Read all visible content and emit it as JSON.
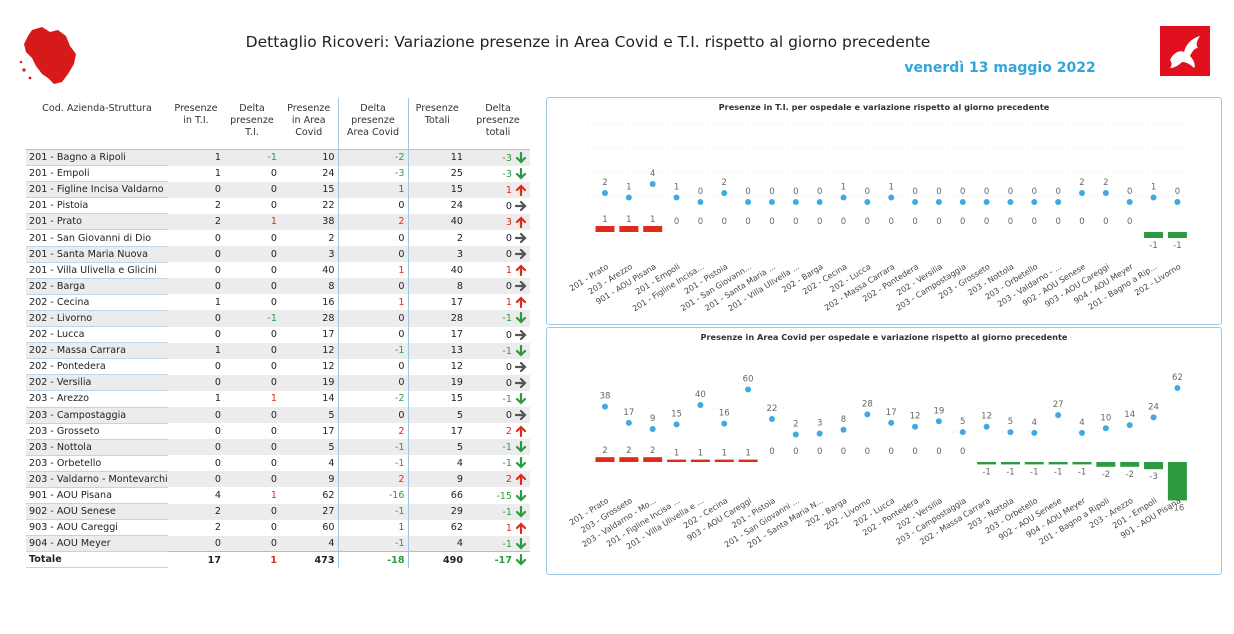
{
  "header": {
    "title": "Dettaglio Ricoveri: Variazione presenze in Area Covid e T.I. rispetto al giorno precedente",
    "date": "venerdì 13 maggio 2022",
    "colors": {
      "title": "#222222",
      "date": "#2fa6dd",
      "logo_right": "#e1101f",
      "logo_left": "#d61a1a"
    }
  },
  "table": {
    "columns": [
      "Cod. Azienda-Struttura",
      "Presenze in T.I.",
      "Delta presenze T.I.",
      "Presenze in Area Covid",
      "Delta presenze Area Covid",
      "Presenze Totali",
      "Delta presenze totali"
    ],
    "rows": [
      [
        "201 - Bagno a Ripoli",
        "1",
        "-1",
        "10",
        "-2",
        "11",
        "-3"
      ],
      [
        "201 - Empoli",
        "1",
        "0",
        "24",
        "-3",
        "25",
        "-3"
      ],
      [
        "201 - Figline Incisa Valdarno",
        "0",
        "0",
        "15",
        "1",
        "15",
        "1"
      ],
      [
        "201 - Pistoia",
        "2",
        "0",
        "22",
        "0",
        "24",
        "0"
      ],
      [
        "201 - Prato",
        "2",
        "1",
        "38",
        "2",
        "40",
        "3"
      ],
      [
        "201 - San Giovanni di Dio",
        "0",
        "0",
        "2",
        "0",
        "2",
        "0"
      ],
      [
        "201 - Santa Maria Nuova",
        "0",
        "0",
        "3",
        "0",
        "3",
        "0"
      ],
      [
        "201 - Villa Ulivella e Glicini",
        "0",
        "0",
        "40",
        "1",
        "40",
        "1"
      ],
      [
        "202 - Barga",
        "0",
        "0",
        "8",
        "0",
        "8",
        "0"
      ],
      [
        "202 - Cecina",
        "1",
        "0",
        "16",
        "1",
        "17",
        "1"
      ],
      [
        "202 - Livorno",
        "0",
        "-1",
        "28",
        "0",
        "28",
        "-1"
      ],
      [
        "202 - Lucca",
        "0",
        "0",
        "17",
        "0",
        "17",
        "0"
      ],
      [
        "202 - Massa Carrara",
        "1",
        "0",
        "12",
        "-1",
        "13",
        "-1"
      ],
      [
        "202 - Pontedera",
        "0",
        "0",
        "12",
        "0",
        "12",
        "0"
      ],
      [
        "202 - Versilia",
        "0",
        "0",
        "19",
        "0",
        "19",
        "0"
      ],
      [
        "203 - Arezzo",
        "1",
        "1",
        "14",
        "-2",
        "15",
        "-1"
      ],
      [
        "203 - Campostaggia",
        "0",
        "0",
        "5",
        "0",
        "5",
        "0"
      ],
      [
        "203 - Grosseto",
        "0",
        "0",
        "17",
        "2",
        "17",
        "2"
      ],
      [
        "203 - Nottola",
        "0",
        "0",
        "5",
        "-1",
        "5",
        "-1"
      ],
      [
        "203 - Orbetello",
        "0",
        "0",
        "4",
        "-1",
        "4",
        "-1"
      ],
      [
        "203 - Valdarno - Montevarchi",
        "0",
        "0",
        "9",
        "2",
        "9",
        "2"
      ],
      [
        "901 - AOU Pisana",
        "4",
        "1",
        "62",
        "-16",
        "66",
        "-15"
      ],
      [
        "902 - AOU Senese",
        "2",
        "0",
        "27",
        "-1",
        "29",
        "-1"
      ],
      [
        "903 - AOU Careggi",
        "2",
        "0",
        "60",
        "1",
        "62",
        "1"
      ],
      [
        "904 - AOU Meyer",
        "0",
        "0",
        "4",
        "-1",
        "4",
        "-1"
      ]
    ],
    "total": [
      "Totale",
      "17",
      "1",
      "473",
      "-18",
      "490",
      "-17"
    ],
    "colors": {
      "negative": "#2e9a3f",
      "positive": "#e02a1a",
      "arrow_neutral": "#555555"
    }
  },
  "chart_data": [
    {
      "type": "line",
      "title": "Presenze in T.I. per ospedale e variazione rispetto al giorno precedente",
      "categories": [
        "201 - Prato",
        "203 - Arezzo",
        "901 - AOU Pisana",
        "201 - Empoli",
        "201 - Figline Incisa...",
        "201 - Pistoia",
        "201 - San Giovann...",
        "201 - Santa Maria ...",
        "201 - Villa Ulivella ...",
        "202 - Barga",
        "202 - Cecina",
        "202 - Lucca",
        "202 - Massa Carrara",
        "202 - Pontedera",
        "202 - Versilia",
        "203 - Campostaggia",
        "203 - Grosseto",
        "203 - Nottola",
        "203 - Orbetello",
        "203 - Valdarno - ...",
        "902 - AOU Senese",
        "903 - AOU Careggi",
        "904 - AOU Meyer",
        "201 - Bagno a Rip...",
        "202 - Livorno"
      ],
      "series": [
        {
          "values": [
            2,
            1,
            4,
            1,
            0,
            2,
            0,
            0,
            0,
            0,
            1,
            0,
            1,
            0,
            0,
            0,
            0,
            0,
            0,
            0,
            2,
            2,
            0,
            1,
            0
          ]
        },
        {
          "values": [
            1,
            1,
            1,
            0,
            0,
            0,
            0,
            0,
            0,
            0,
            0,
            0,
            0,
            0,
            0,
            0,
            0,
            0,
            0,
            0,
            0,
            0,
            0,
            -1,
            -1
          ]
        }
      ],
      "colors": {
        "dots": "#41a9e0",
        "positive": "#e02a1a",
        "negative": "#2e9a3f"
      }
    },
    {
      "type": "line",
      "title": "Presenze in Area Covid per ospedale e variazione rispetto al giorno precedente",
      "categories": [
        "201 - Prato",
        "203 - Grosseto",
        "203 - Valdarno - Mo...",
        "201 - Figline Incisa ...",
        "201 - Villa Ulivella e ...",
        "202 - Cecina",
        "903 - AOU Careggi",
        "201 - Pistoia",
        "201 - San Giovanni ...",
        "201 - Santa Maria N...",
        "202 - Barga",
        "202 - Livorno",
        "202 - Lucca",
        "202 - Pontedera",
        "202 - Versilia",
        "203 - Campostaggia",
        "202 - Massa Carrara",
        "203 - Nottola",
        "203 - Orbetello",
        "902 - AOU Senese",
        "904 - AOU Meyer",
        "201 - Bagno a Ripoli",
        "203 - Arezzo",
        "201 - Empoli",
        "901 - AOU Pisana"
      ],
      "series": [
        {
          "values": [
            38,
            17,
            9,
            15,
            40,
            16,
            60,
            22,
            2,
            3,
            8,
            28,
            17,
            12,
            19,
            5,
            12,
            5,
            4,
            27,
            4,
            10,
            14,
            24,
            62
          ]
        },
        {
          "values": [
            2,
            2,
            2,
            1,
            1,
            1,
            1,
            0,
            0,
            0,
            0,
            0,
            0,
            0,
            0,
            0,
            -1,
            -1,
            -1,
            -1,
            -1,
            -2,
            -2,
            -3,
            -16
          ]
        }
      ],
      "colors": {
        "dots": "#41a9e0",
        "positive": "#e02a1a",
        "negative": "#2e9a3f"
      }
    }
  ]
}
